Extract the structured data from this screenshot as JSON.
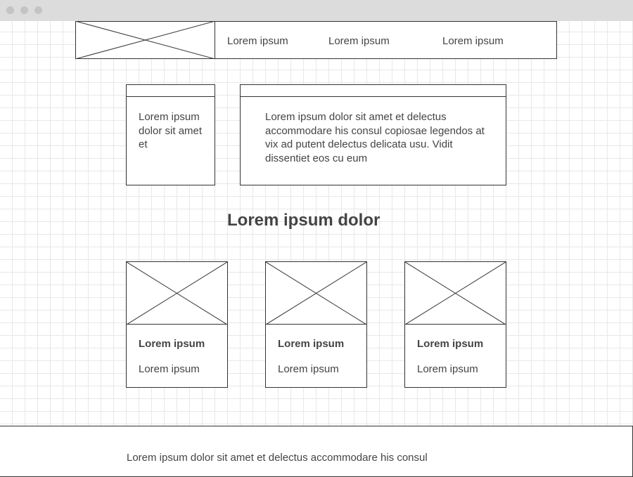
{
  "nav": {
    "links": [
      "Lorem ipsum",
      "Lorem ipsum",
      "Lorem ipsum"
    ]
  },
  "sidebar_panel": {
    "text": "Lorem ipsum dolor sit amet et"
  },
  "main_panel": {
    "text": "Lorem ipsum dolor sit amet et delectus accommodare his consul copiosae legendos at vix ad putent delectus delicata usu. Vidit dissentiet eos cu eum"
  },
  "section": {
    "heading": "Lorem ipsum dolor"
  },
  "cards": [
    {
      "title": "Lorem ipsum",
      "subtitle": "Lorem ipsum"
    },
    {
      "title": "Lorem ipsum",
      "subtitle": "Lorem ipsum"
    },
    {
      "title": "Lorem ipsum",
      "subtitle": "Lorem ipsum"
    }
  ],
  "footer": {
    "text": "Lorem ipsum dolor sit amet et delectus accommodare his consul"
  }
}
